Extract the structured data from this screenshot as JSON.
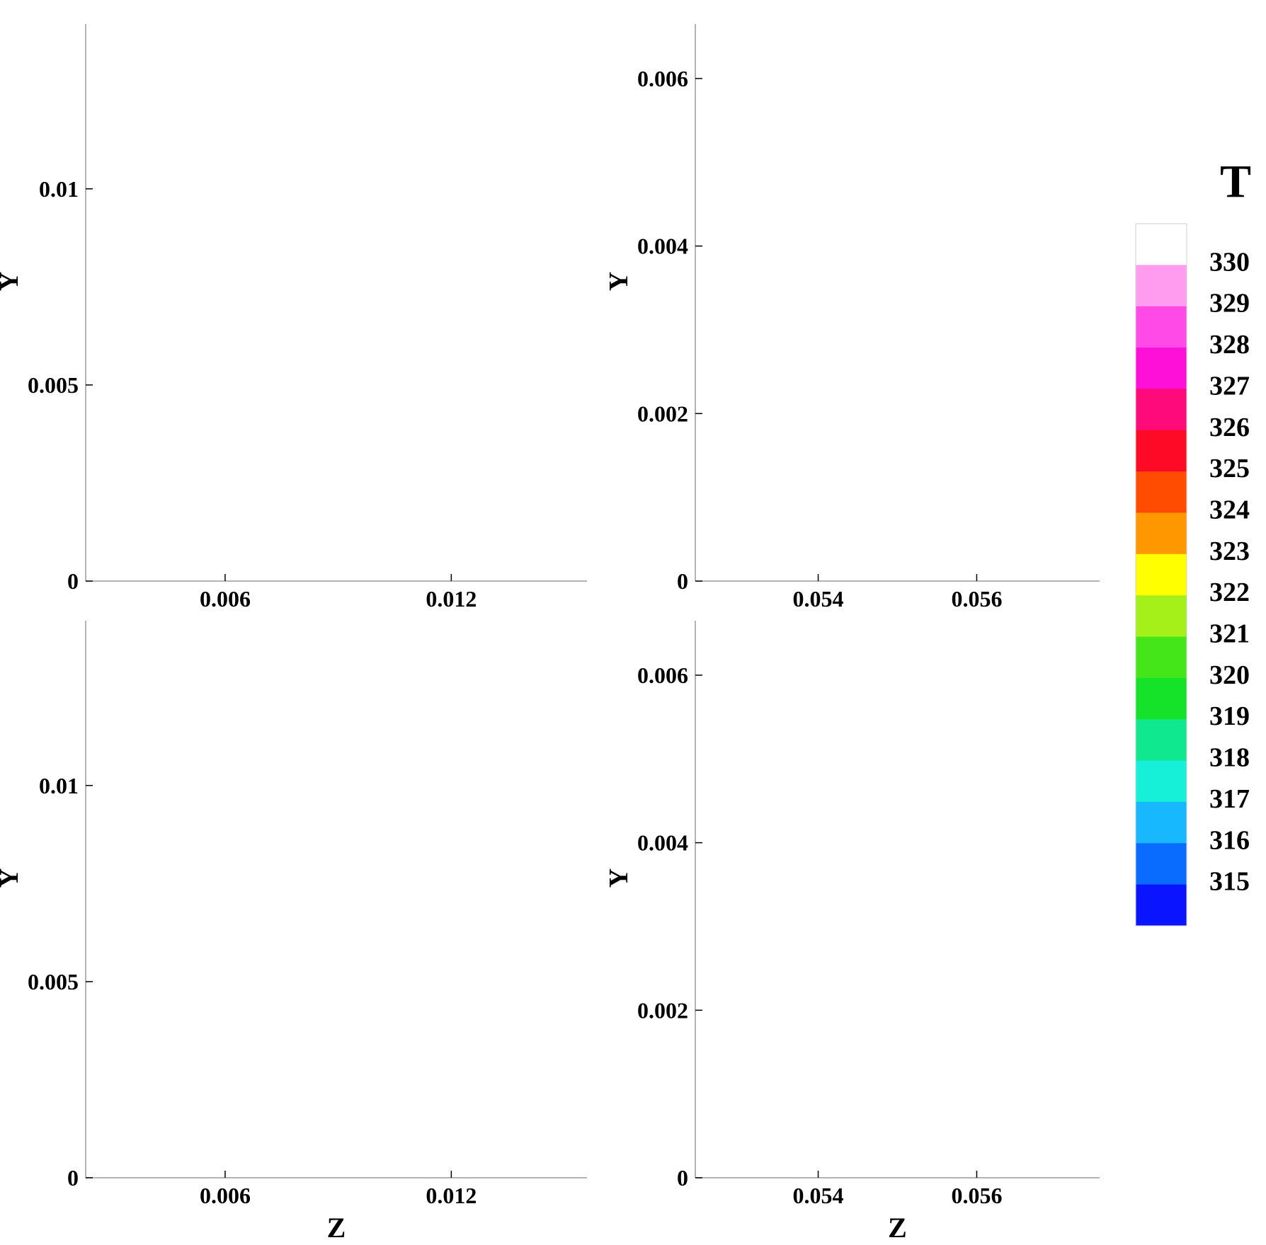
{
  "figure": {
    "colorbar": {
      "title": "T",
      "levels": [
        315,
        316,
        317,
        318,
        319,
        320,
        321,
        322,
        323,
        324,
        325,
        326,
        327,
        328,
        329,
        330
      ],
      "colors": [
        "#0a14ff",
        "#0a6bff",
        "#18b8ff",
        "#16f0d8",
        "#10e890",
        "#14e32a",
        "#44e61a",
        "#a6f01a",
        "#ffff00",
        "#ff9800",
        "#ff4c00",
        "#ff0a26",
        "#ff0a7a",
        "#ff10d8",
        "#ff4ae8",
        "#ff9cf0",
        "#ffffff"
      ]
    }
  },
  "chart_data": [
    {
      "type": "heatmap",
      "panel": "top-left",
      "xlabel": "",
      "ylabel": "Y",
      "xlim": [
        0.0023,
        0.0156
      ],
      "ylim": [
        0,
        0.0142
      ],
      "xticks": [
        0.006,
        0.012
      ],
      "xtick_labels": [
        "0.006",
        "0.012"
      ],
      "yticks": [
        0,
        0.005,
        0.01
      ],
      "ytick_labels": [
        "0",
        "0.005",
        "0.01"
      ],
      "field": "T",
      "T_range": [
        315,
        330
      ],
      "overlay": "velocity vectors"
    },
    {
      "type": "heatmap",
      "panel": "top-right",
      "xlabel": "",
      "ylabel": "Y",
      "xlim": [
        0.05245,
        0.05755
      ],
      "ylim": [
        0,
        0.00665
      ],
      "xticks": [
        0.054,
        0.056
      ],
      "xtick_labels": [
        "0.054",
        "0.056"
      ],
      "yticks": [
        0,
        0.002,
        0.004,
        0.006
      ],
      "ytick_labels": [
        "0",
        "0.002",
        "0.004",
        "0.006"
      ],
      "field": "T",
      "T_range": [
        315,
        325
      ],
      "overlay": "velocity vectors"
    },
    {
      "type": "heatmap",
      "panel": "bottom-left",
      "xlabel": "Z",
      "ylabel": "Y",
      "xlim": [
        0.0023,
        0.0156
      ],
      "ylim": [
        0,
        0.0142
      ],
      "xticks": [
        0.006,
        0.012
      ],
      "xtick_labels": [
        "0.006",
        "0.012"
      ],
      "yticks": [
        0,
        0.005,
        0.01
      ],
      "ytick_labels": [
        "0",
        "0.005",
        "0.01"
      ],
      "field": "T",
      "T_range": [
        315,
        330
      ],
      "overlay": "velocity vectors"
    },
    {
      "type": "heatmap",
      "panel": "bottom-right",
      "xlabel": "Z",
      "ylabel": "Y",
      "xlim": [
        0.05245,
        0.05755
      ],
      "ylim": [
        0,
        0.00665
      ],
      "xticks": [
        0.054,
        0.056
      ],
      "xtick_labels": [
        "0.054",
        "0.056"
      ],
      "yticks": [
        0,
        0.002,
        0.004,
        0.006
      ],
      "ytick_labels": [
        "0",
        "0.002",
        "0.004",
        "0.006"
      ],
      "field": "T",
      "T_range": [
        315,
        326
      ],
      "overlay": "velocity vectors"
    }
  ]
}
